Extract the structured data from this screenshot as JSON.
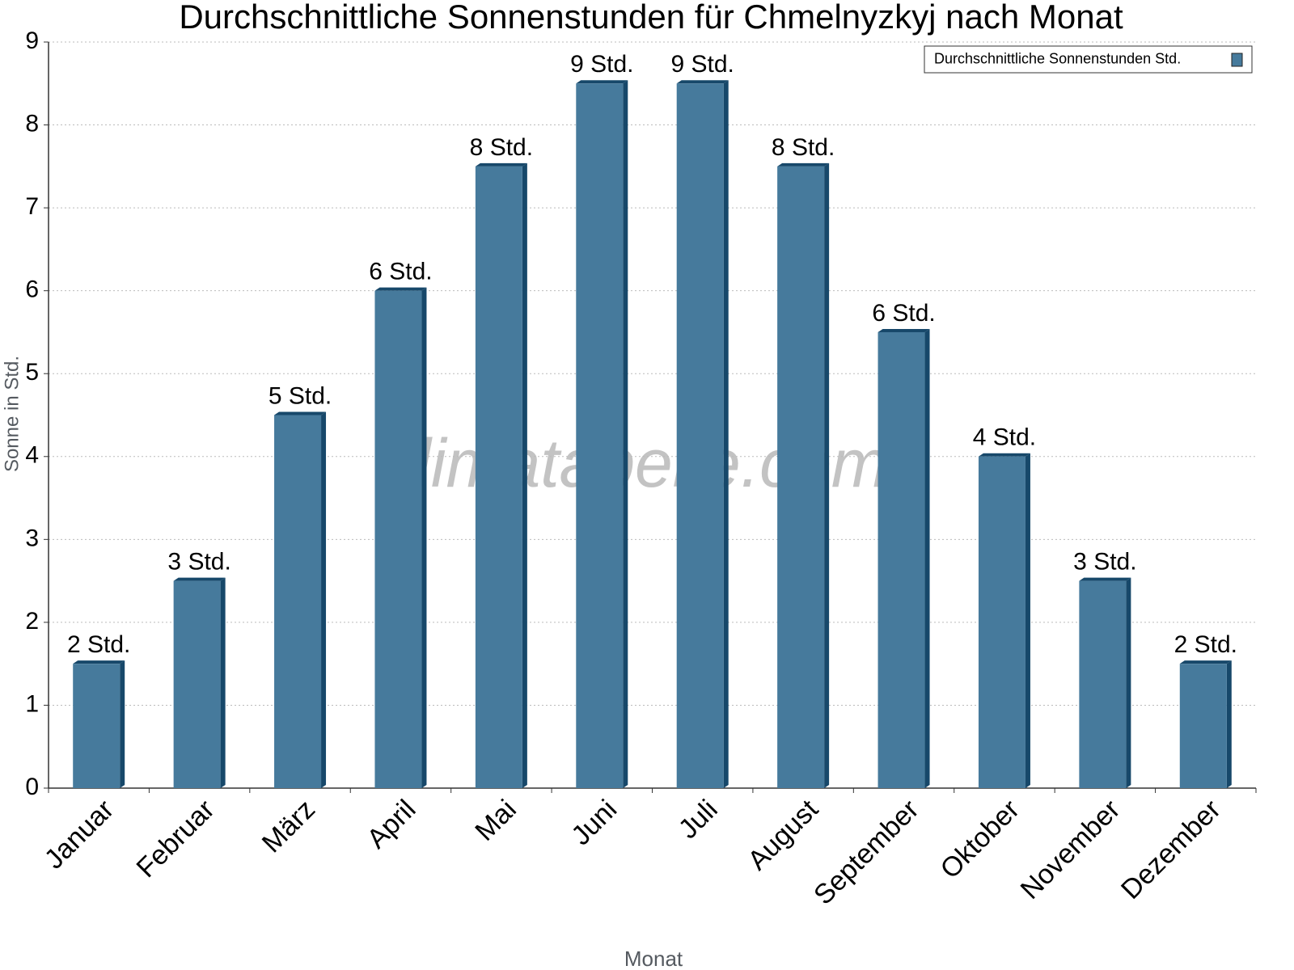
{
  "chart_data": {
    "type": "bar",
    "title": "Durchschnittliche Sonnenstunden für Chmelnyzkyj nach Monat",
    "xlabel": "Monat",
    "ylabel": "Sonne in Std.",
    "watermark": "klimatabelle.com",
    "categories": [
      "Januar",
      "Februar",
      "März",
      "April",
      "Mai",
      "Juni",
      "Juli",
      "August",
      "September",
      "Oktober",
      "November",
      "Dezember"
    ],
    "series": [
      {
        "name": "Durchschnittliche Sonnenstunden Std.",
        "color": "#467a9c",
        "values": [
          1.5,
          2.5,
          4.5,
          6,
          7.5,
          8.5,
          8.5,
          7.5,
          5.5,
          4,
          2.5,
          1.5
        ],
        "value_labels": [
          "2 Std.",
          "3 Std.",
          "5 Std.",
          "6 Std.",
          "8 Std.",
          "9 Std.",
          "9 Std.",
          "8 Std.",
          "6 Std.",
          "4 Std.",
          "3 Std.",
          "2 Std."
        ]
      }
    ],
    "ylim": [
      0,
      9
    ],
    "yticks": [
      0,
      1,
      2,
      3,
      4,
      5,
      6,
      7,
      8,
      9
    ],
    "grid": true,
    "legend": "upper right"
  }
}
